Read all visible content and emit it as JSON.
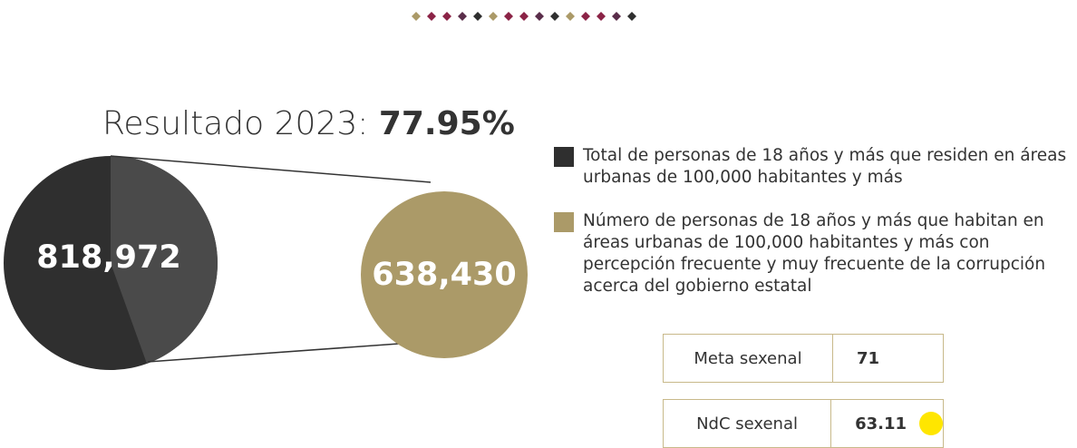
{
  "header": {
    "title": "Resultado 2023:",
    "result": "77.95%"
  },
  "circles": [
    {
      "label": "818,972",
      "color": "#2f2f2f"
    },
    {
      "label": "638,430",
      "color": "#ab9a68"
    }
  ],
  "legend": [
    {
      "text": "Total de personas de 18 años y más que residen en áreas urbanas de 100,000 habitantes y más",
      "color": "#2f2f2f"
    },
    {
      "text": "Número de personas de 18 años y más que habitan en áreas urbanas de 100,000 habitantes y más con percepción frecuente y muy frecuente de la corrupción acerca del gobierno estatal",
      "color": "#ab9a68"
    }
  ],
  "table": [
    {
      "label": "Meta sexenal",
      "value": "71"
    },
    {
      "label": "NdC sexenal",
      "value": "63.11",
      "status_color": "#ffe600"
    }
  ]
}
